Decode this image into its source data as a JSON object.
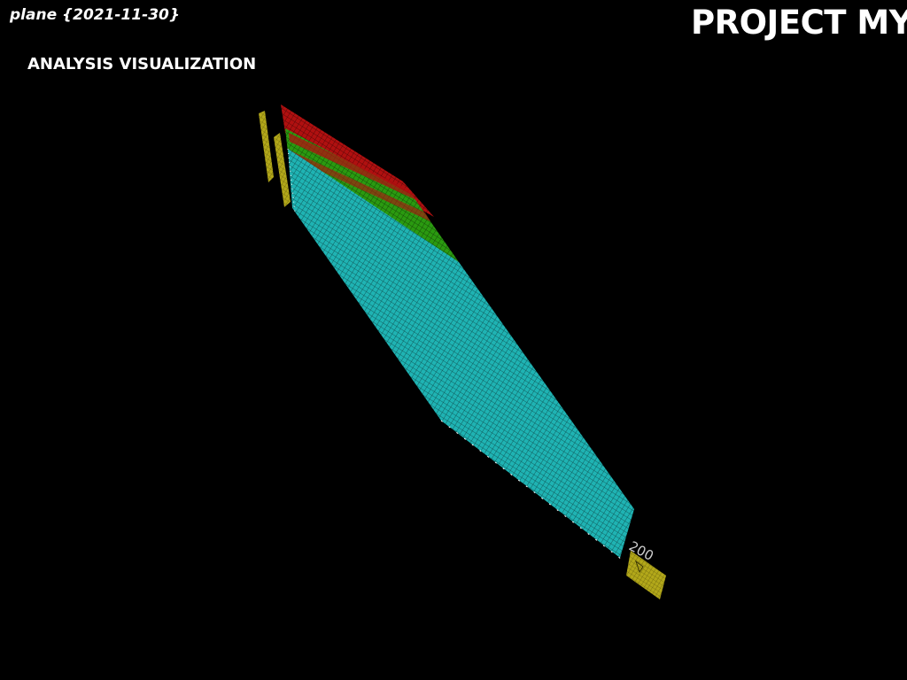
{
  "header": {
    "plane_label": "plane {2021-11-30}",
    "project_title": "PROJECT MYI",
    "analysis_title": "ANALYSIS VISUALIZATION"
  },
  "axis": {
    "tick_label": "200"
  },
  "colors": {
    "background": "#000000",
    "cyan_mesh": "#1fb3b3",
    "green_mesh": "#2a9a10",
    "red_mesh": "#b01010",
    "yellow_panel": "#b3a81a",
    "text": "#ffffff"
  }
}
